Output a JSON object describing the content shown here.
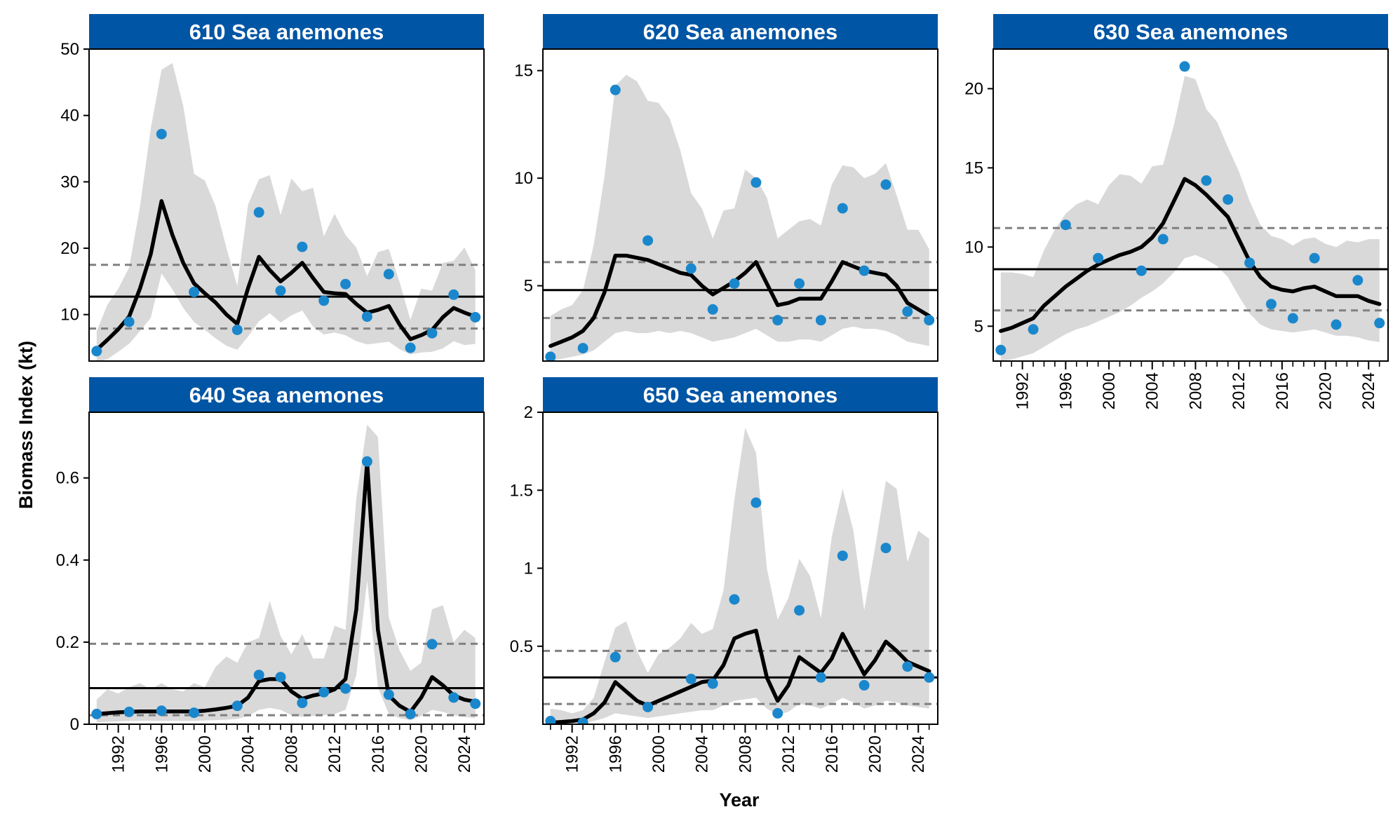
{
  "figure": {
    "ylabel": "Biomass Index (kt)",
    "xlabel": "Year"
  },
  "colors": {
    "strip": "#0055A4",
    "points": "#1A87CC",
    "ribbon": "#D9D9D9",
    "line": "#000000",
    "mean": "#000000",
    "bounds": "#808080"
  },
  "chart_data": [
    {
      "type": "line",
      "title": "610 Sea anemones",
      "ylim": [
        3,
        50
      ],
      "yticks": [
        10,
        20,
        30,
        40,
        50
      ],
      "xlim": [
        1989.3,
        2025.8
      ],
      "xticks": [
        1992,
        1996,
        2000,
        2004,
        2008,
        2012,
        2016,
        2020,
        2024
      ],
      "show_x_axis": false,
      "mean": 12.7,
      "lower": 7.9,
      "upper": 17.5,
      "years": [
        1990,
        1991,
        1992,
        1993,
        1994,
        1995,
        1996,
        1997,
        1998,
        1999,
        2000,
        2001,
        2002,
        2003,
        2004,
        2005,
        2006,
        2007,
        2008,
        2009,
        2010,
        2011,
        2012,
        2013,
        2014,
        2015,
        2016,
        2017,
        2018,
        2019,
        2020,
        2021,
        2022,
        2023,
        2024,
        2025
      ],
      "fit": [
        4.7,
        6.2,
        7.8,
        9.7,
        13.9,
        19.1,
        27.1,
        22.0,
        17.8,
        14.7,
        13.2,
        11.8,
        10.0,
        8.6,
        14.0,
        18.7,
        16.7,
        15.0,
        16.3,
        17.8,
        15.5,
        13.4,
        13.2,
        13.1,
        11.6,
        10.3,
        10.7,
        11.3,
        8.5,
        6.3,
        6.9,
        7.7,
        9.6,
        11.0,
        10.3,
        9.7
      ],
      "ci_lower": [
        2.8,
        3.3,
        4.4,
        5.6,
        7.5,
        9.5,
        16.2,
        13.8,
        11.0,
        8.9,
        7.7,
        6.4,
        5.3,
        4.7,
        6.7,
        9.0,
        10.2,
        8.8,
        9.9,
        10.6,
        8.2,
        7.0,
        7.3,
        6.9,
        6.0,
        5.5,
        5.7,
        5.9,
        4.8,
        4.0,
        4.3,
        4.4,
        4.9,
        6.0,
        5.4,
        5.6
      ],
      "ci_upper": [
        7.5,
        11.5,
        13.9,
        17.1,
        26.2,
        38.0,
        46.9,
        47.9,
        41.5,
        31.2,
        30.2,
        26.3,
        20.0,
        14.3,
        26.6,
        30.4,
        31.0,
        25.0,
        30.5,
        28.6,
        29.1,
        21.8,
        25.2,
        22.0,
        20.1,
        15.8,
        19.4,
        19.9,
        14.9,
        9.2,
        13.9,
        13.6,
        17.8,
        18.1,
        20.1,
        16.7
      ],
      "obs_x": [
        1990,
        1993,
        1996,
        1999,
        2003,
        2005,
        2007,
        2009,
        2011,
        2013,
        2015,
        2017,
        2019,
        2021,
        2023,
        2025
      ],
      "obs_y": [
        4.5,
        8.9,
        37.2,
        13.4,
        7.7,
        25.4,
        13.6,
        20.2,
        12.1,
        14.6,
        9.7,
        16.1,
        5.0,
        7.2,
        13.0,
        9.6
      ]
    },
    {
      "type": "line",
      "title": "620 Sea anemones",
      "ylim": [
        1.5,
        16.0
      ],
      "yticks": [
        5,
        10,
        15
      ],
      "xlim": [
        1989.3,
        2025.8
      ],
      "xticks": [
        1992,
        1996,
        2000,
        2004,
        2008,
        2012,
        2016,
        2020,
        2024
      ],
      "show_x_axis": false,
      "mean": 4.8,
      "lower": 3.5,
      "upper": 6.1,
      "years": [
        1990,
        1991,
        1992,
        1993,
        1994,
        1995,
        1996,
        1997,
        1998,
        1999,
        2000,
        2001,
        2002,
        2003,
        2004,
        2005,
        2006,
        2007,
        2008,
        2009,
        2010,
        2011,
        2012,
        2013,
        2014,
        2015,
        2016,
        2017,
        2018,
        2019,
        2020,
        2021,
        2022,
        2023,
        2024,
        2025
      ],
      "fit": [
        2.2,
        2.4,
        2.6,
        2.9,
        3.5,
        4.7,
        6.4,
        6.4,
        6.3,
        6.2,
        6.0,
        5.8,
        5.6,
        5.5,
        5.0,
        4.6,
        4.9,
        5.2,
        5.6,
        6.1,
        5.1,
        4.1,
        4.2,
        4.4,
        4.4,
        4.4,
        5.2,
        6.1,
        5.9,
        5.7,
        5.6,
        5.5,
        5.0,
        4.2,
        3.9,
        3.6
      ],
      "ci_lower": [
        1.5,
        1.6,
        1.7,
        1.8,
        2.0,
        2.4,
        2.8,
        2.9,
        2.8,
        2.8,
        2.9,
        2.8,
        2.9,
        2.8,
        2.6,
        2.4,
        2.5,
        2.6,
        2.8,
        3.0,
        2.7,
        2.4,
        2.4,
        2.5,
        2.5,
        2.4,
        2.7,
        3.0,
        3.1,
        3.0,
        3.0,
        2.9,
        2.7,
        2.4,
        2.3,
        2.2
      ],
      "ci_upper": [
        3.6,
        3.9,
        4.1,
        4.8,
        6.9,
        10.1,
        14.3,
        14.8,
        14.5,
        13.6,
        13.5,
        12.8,
        11.3,
        9.3,
        8.6,
        7.2,
        8.5,
        8.6,
        10.4,
        10.0,
        9.1,
        7.2,
        7.6,
        8.0,
        8.1,
        7.8,
        9.7,
        10.6,
        10.5,
        10.0,
        10.2,
        10.7,
        9.2,
        7.6,
        7.6,
        6.7
      ],
      "obs_x": [
        1990,
        1993,
        1996,
        1999,
        2003,
        2005,
        2007,
        2009,
        2011,
        2013,
        2015,
        2017,
        2019,
        2021,
        2023,
        2025
      ],
      "obs_y": [
        1.7,
        2.1,
        14.1,
        7.1,
        5.8,
        3.9,
        5.1,
        9.8,
        3.4,
        5.1,
        3.4,
        8.6,
        5.7,
        9.7,
        3.8,
        3.4
      ]
    },
    {
      "type": "line",
      "title": "630 Sea anemones",
      "ylim": [
        2.8,
        22.5
      ],
      "yticks": [
        5,
        10,
        15,
        20
      ],
      "xlim": [
        1989.3,
        2025.8
      ],
      "xticks": [
        1992,
        1996,
        2000,
        2004,
        2008,
        2012,
        2016,
        2020,
        2024
      ],
      "show_x_axis": true,
      "mean": 8.6,
      "lower": 6.0,
      "upper": 11.2,
      "years": [
        1990,
        1991,
        1992,
        1993,
        1994,
        1995,
        1996,
        1997,
        1998,
        1999,
        2000,
        2001,
        2002,
        2003,
        2004,
        2005,
        2006,
        2007,
        2008,
        2009,
        2010,
        2011,
        2012,
        2013,
        2014,
        2015,
        2016,
        2017,
        2018,
        2019,
        2020,
        2021,
        2022,
        2023,
        2024,
        2025
      ],
      "fit": [
        4.7,
        4.9,
        5.2,
        5.5,
        6.3,
        6.9,
        7.5,
        8.0,
        8.5,
        8.9,
        9.2,
        9.5,
        9.7,
        10.0,
        10.6,
        11.5,
        12.9,
        14.3,
        13.9,
        13.3,
        12.6,
        11.9,
        10.5,
        9.1,
        8.1,
        7.5,
        7.3,
        7.2,
        7.4,
        7.5,
        7.2,
        6.9,
        6.9,
        6.9,
        6.6,
        6.4
      ],
      "ci_lower": [
        2.8,
        2.9,
        3.1,
        3.3,
        3.7,
        4.1,
        4.5,
        4.8,
        5.0,
        5.3,
        5.6,
        5.9,
        6.3,
        6.8,
        7.2,
        7.7,
        8.4,
        9.3,
        9.5,
        9.2,
        8.8,
        8.1,
        6.9,
        5.8,
        5.1,
        4.8,
        4.7,
        4.6,
        4.7,
        4.8,
        4.6,
        4.4,
        4.4,
        4.3,
        4.1,
        4.0
      ],
      "ci_upper": [
        8.4,
        8.4,
        8.3,
        8.1,
        9.8,
        11.1,
        12.1,
        12.7,
        13.0,
        12.7,
        13.9,
        14.6,
        14.5,
        14.0,
        15.1,
        15.2,
        17.7,
        20.8,
        20.6,
        18.7,
        17.9,
        16.3,
        14.8,
        12.9,
        11.4,
        10.7,
        10.5,
        10.1,
        10.5,
        10.6,
        10.2,
        10.0,
        10.4,
        10.3,
        10.5,
        10.5
      ],
      "obs_x": [
        1990,
        1993,
        1996,
        1999,
        2003,
        2005,
        2007,
        2009,
        2011,
        2013,
        2015,
        2017,
        2019,
        2021,
        2023,
        2025
      ],
      "obs_y": [
        3.5,
        4.8,
        11.4,
        9.3,
        8.5,
        10.5,
        21.4,
        14.2,
        13.0,
        9.0,
        6.4,
        5.5,
        9.3,
        5.1,
        7.9,
        5.2
      ]
    },
    {
      "type": "line",
      "title": "640 Sea anemones",
      "ylim": [
        0.0,
        0.76
      ],
      "yticks": [
        0.0,
        0.2,
        0.4,
        0.6
      ],
      "xlim": [
        1989.3,
        2025.8
      ],
      "xticks": [
        1992,
        1996,
        2000,
        2004,
        2008,
        2012,
        2016,
        2020,
        2024
      ],
      "show_x_axis": true,
      "mean": 0.088,
      "lower": 0.022,
      "upper": 0.196,
      "years": [
        1990,
        1991,
        1992,
        1993,
        1994,
        1995,
        1996,
        1997,
        1998,
        1999,
        2000,
        2001,
        2002,
        2003,
        2004,
        2005,
        2006,
        2007,
        2008,
        2009,
        2010,
        2011,
        2012,
        2013,
        2014,
        2015,
        2016,
        2017,
        2018,
        2019,
        2020,
        2021,
        2022,
        2023,
        2024,
        2025
      ],
      "fit": [
        0.025,
        0.027,
        0.029,
        0.03,
        0.031,
        0.031,
        0.031,
        0.031,
        0.031,
        0.031,
        0.033,
        0.036,
        0.04,
        0.045,
        0.065,
        0.105,
        0.11,
        0.11,
        0.08,
        0.062,
        0.07,
        0.075,
        0.085,
        0.11,
        0.28,
        0.64,
        0.23,
        0.07,
        0.045,
        0.03,
        0.065,
        0.115,
        0.095,
        0.07,
        0.06,
        0.055
      ],
      "ci_lower": [
        0.005,
        0.006,
        0.007,
        0.008,
        0.008,
        0.008,
        0.008,
        0.008,
        0.008,
        0.008,
        0.009,
        0.01,
        0.011,
        0.013,
        0.02,
        0.035,
        0.04,
        0.035,
        0.022,
        0.018,
        0.02,
        0.022,
        0.025,
        0.035,
        0.12,
        0.35,
        0.09,
        0.025,
        0.015,
        0.01,
        0.02,
        0.035,
        0.03,
        0.022,
        0.018,
        0.015
      ],
      "ci_upper": [
        0.06,
        0.085,
        0.075,
        0.09,
        0.1,
        0.085,
        0.1,
        0.085,
        0.08,
        0.1,
        0.09,
        0.14,
        0.165,
        0.15,
        0.2,
        0.21,
        0.3,
        0.215,
        0.17,
        0.22,
        0.16,
        0.16,
        0.24,
        0.23,
        0.55,
        0.73,
        0.7,
        0.26,
        0.18,
        0.13,
        0.15,
        0.28,
        0.29,
        0.2,
        0.23,
        0.21
      ],
      "obs_x": [
        1990,
        1993,
        1996,
        1999,
        2003,
        2005,
        2007,
        2009,
        2011,
        2013,
        2015,
        2017,
        2019,
        2021,
        2023,
        2025
      ],
      "obs_y": [
        0.025,
        0.03,
        0.033,
        0.028,
        0.045,
        0.12,
        0.115,
        0.052,
        0.078,
        0.087,
        0.64,
        0.072,
        0.025,
        0.195,
        0.065,
        0.05
      ]
    },
    {
      "type": "line",
      "title": "650 Sea anemones",
      "ylim": [
        0.0,
        2.0
      ],
      "yticks": [
        0.5,
        1.0,
        1.5,
        2.0
      ],
      "xlim": [
        1989.3,
        2025.8
      ],
      "xticks": [
        1992,
        1996,
        2000,
        2004,
        2008,
        2012,
        2016,
        2020,
        2024
      ],
      "show_x_axis": true,
      "mean": 0.3,
      "lower": 0.13,
      "upper": 0.47,
      "years": [
        1990,
        1991,
        1992,
        1993,
        1994,
        1995,
        1996,
        1997,
        1998,
        1999,
        2000,
        2001,
        2002,
        2003,
        2004,
        2005,
        2006,
        2007,
        2008,
        2009,
        2010,
        2011,
        2012,
        2013,
        2014,
        2015,
        2016,
        2017,
        2018,
        2019,
        2020,
        2021,
        2022,
        2023,
        2024,
        2025
      ],
      "fit": [
        0.01,
        0.015,
        0.02,
        0.03,
        0.07,
        0.14,
        0.27,
        0.21,
        0.15,
        0.12,
        0.15,
        0.18,
        0.21,
        0.24,
        0.27,
        0.28,
        0.38,
        0.55,
        0.58,
        0.6,
        0.3,
        0.15,
        0.25,
        0.43,
        0.38,
        0.33,
        0.42,
        0.58,
        0.45,
        0.32,
        0.41,
        0.53,
        0.47,
        0.4,
        0.37,
        0.34
      ],
      "ci_lower": [
        0.0,
        0.0,
        0.005,
        0.01,
        0.02,
        0.04,
        0.07,
        0.06,
        0.05,
        0.04,
        0.05,
        0.06,
        0.07,
        0.08,
        0.09,
        0.09,
        0.12,
        0.15,
        0.16,
        0.17,
        0.1,
        0.06,
        0.08,
        0.13,
        0.12,
        0.1,
        0.13,
        0.17,
        0.14,
        0.1,
        0.12,
        0.15,
        0.14,
        0.12,
        0.11,
        0.1
      ],
      "ci_upper": [
        0.1,
        0.09,
        0.07,
        0.09,
        0.17,
        0.4,
        0.62,
        0.66,
        0.47,
        0.33,
        0.45,
        0.49,
        0.55,
        0.65,
        0.58,
        0.61,
        0.86,
        1.44,
        1.9,
        1.74,
        1.0,
        0.67,
        0.81,
        1.06,
        0.95,
        0.68,
        1.2,
        1.51,
        1.24,
        0.73,
        1.13,
        1.56,
        1.51,
        1.04,
        1.24,
        1.19
      ],
      "obs_x": [
        1990,
        1993,
        1996,
        1999,
        2003,
        2005,
        2007,
        2009,
        2011,
        2013,
        2015,
        2017,
        2019,
        2021,
        2023,
        2025
      ],
      "obs_y": [
        0.02,
        0.01,
        0.43,
        0.11,
        0.29,
        0.26,
        0.8,
        1.42,
        0.07,
        0.73,
        0.3,
        1.08,
        0.25,
        1.13,
        0.37,
        0.3
      ]
    }
  ]
}
